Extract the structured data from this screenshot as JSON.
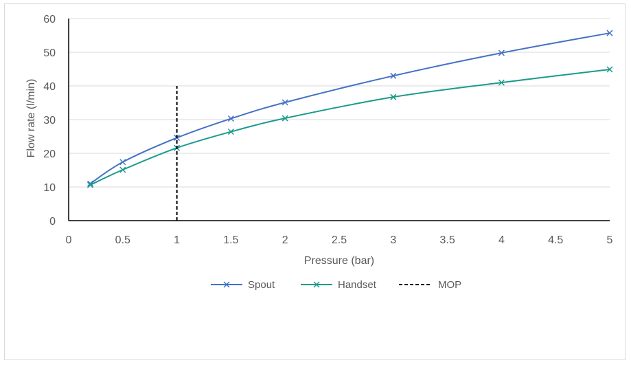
{
  "chart_data": {
    "type": "line",
    "title": "",
    "xlabel": "Pressure (bar)",
    "ylabel": "Flow rate (l/min)",
    "xlim": [
      0,
      5
    ],
    "ylim": [
      0,
      60
    ],
    "x_ticks": [
      "0",
      "0.5",
      "1",
      "1.5",
      "2",
      "2.5",
      "3",
      "3.5",
      "4",
      "4.5",
      "5"
    ],
    "y_ticks": [
      "0",
      "10",
      "20",
      "30",
      "40",
      "50",
      "60"
    ],
    "grid": "horizontal",
    "legend_position": "bottom",
    "series": [
      {
        "name": "Spout",
        "color": "#4472c4",
        "marker": "x",
        "x": [
          0.2,
          0.5,
          1,
          1.5,
          2,
          3,
          4,
          5
        ],
        "values": [
          11.0,
          17.4,
          24.6,
          30.3,
          35.1,
          43.0,
          49.8,
          55.7
        ]
      },
      {
        "name": "Handset",
        "color": "#1a9b8c",
        "marker": "x",
        "x": [
          0.2,
          0.5,
          1,
          1.5,
          2,
          3,
          4,
          5
        ],
        "values": [
          10.6,
          15.1,
          21.6,
          26.4,
          30.4,
          36.7,
          41.0,
          44.9
        ]
      },
      {
        "name": "MOP",
        "color": "#000000",
        "style": "dashed",
        "x": [
          1,
          1
        ],
        "values": [
          0,
          40
        ]
      }
    ]
  }
}
